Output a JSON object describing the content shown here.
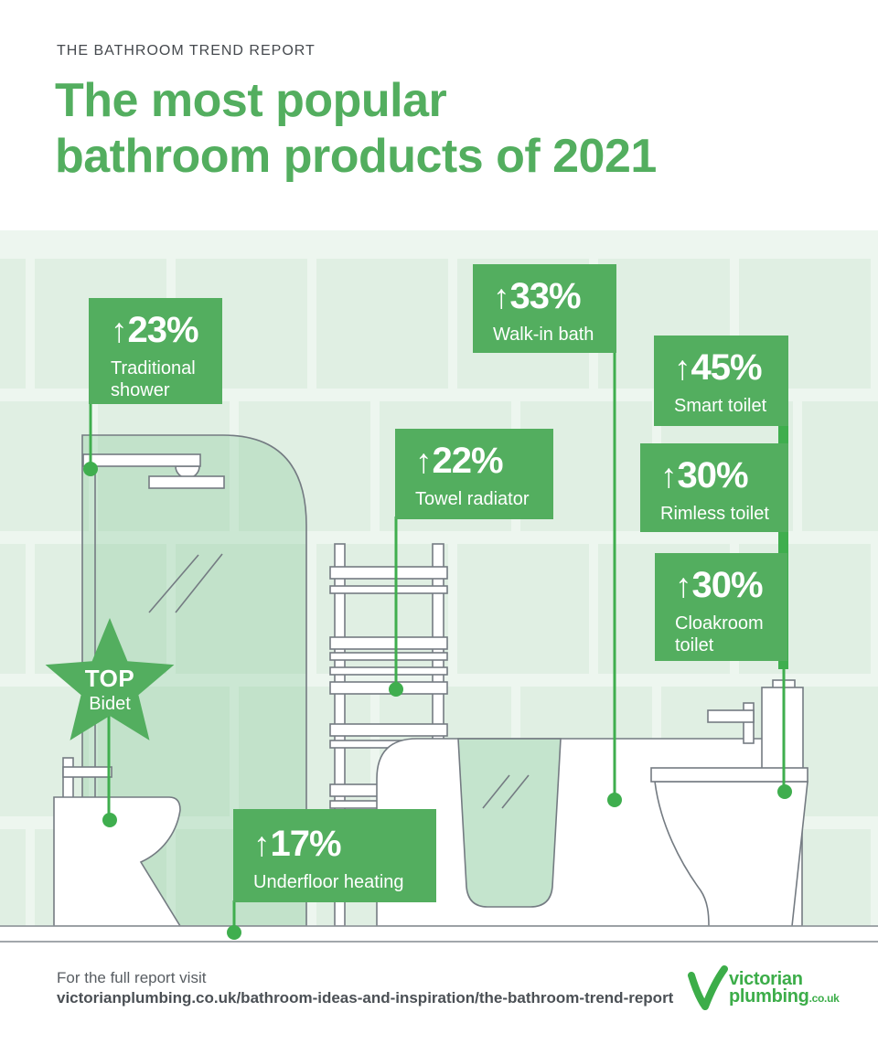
{
  "header": {
    "kicker": "THE BATHROOM TREND REPORT",
    "title_line1": "The most popular",
    "title_line2": "bathroom products of 2021"
  },
  "labels": [
    {
      "arrow": "↑",
      "pct": "23%",
      "name": "Traditional shower"
    },
    {
      "arrow": "↑",
      "pct": "33%",
      "name": "Walk-in bath"
    },
    {
      "arrow": "↑",
      "pct": "45%",
      "name": "Smart toilet"
    },
    {
      "arrow": "↑",
      "pct": "22%",
      "name": "Towel radiator"
    },
    {
      "arrow": "↑",
      "pct": "30%",
      "name": "Rimless toilet"
    },
    {
      "arrow": "↑",
      "pct": "30%",
      "name": "Cloakroom toilet"
    },
    {
      "arrow": "↑",
      "pct": "17%",
      "name": "Underfloor heating"
    }
  ],
  "star": {
    "badge": "TOP",
    "name": "Bidet"
  },
  "footer": {
    "line1": "For the full report visit",
    "line2": "victorianplumbing.co.uk/bathroom-ideas-and-inspiration/the-bathroom-trend-report"
  },
  "logo": {
    "word1": "victorian",
    "word2": "plumbing",
    "suffix": ".co.uk"
  },
  "colors": {
    "brand_green": "#53ae5f",
    "line_green": "#3fae4e",
    "logo_green": "#3cad49",
    "panel_bg": "#edf6ef",
    "tile": "#e0efe3",
    "outline_gray": "#747b82"
  },
  "chart_data": {
    "type": "bar",
    "title": "The most popular bathroom products of 2021",
    "subtitle": "THE BATHROOM TREND REPORT",
    "categories": [
      "Traditional shower",
      "Walk-in bath",
      "Smart toilet",
      "Towel radiator",
      "Rimless toilet",
      "Cloakroom toilet",
      "Underfloor heating"
    ],
    "values": [
      23,
      33,
      45,
      22,
      30,
      30,
      17
    ],
    "units": "% increase",
    "annotations": [
      "TOP product: Bidet"
    ]
  }
}
